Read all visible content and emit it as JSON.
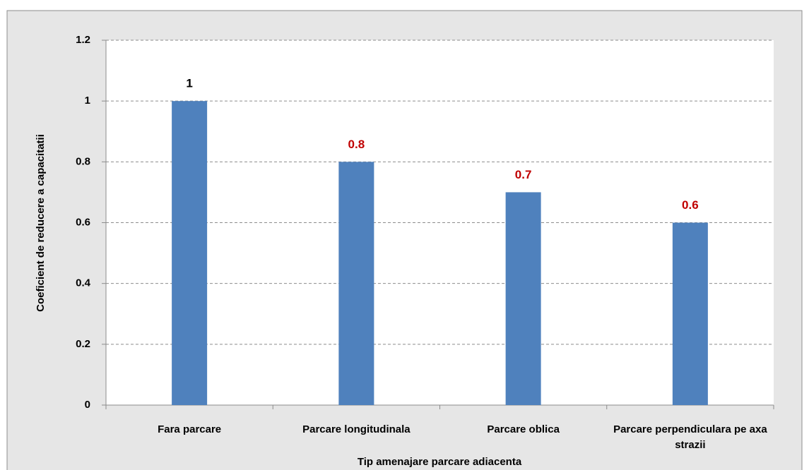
{
  "chart_data": {
    "type": "bar",
    "categories": [
      "Fara parcare",
      "Parcare longitudinala",
      "Parcare oblica",
      "Parcare perpendiculara pe axa strazii"
    ],
    "values": [
      1,
      0.8,
      0.7,
      0.6
    ],
    "color": "#4f81bd",
    "value_label_colors": [
      "#000000",
      "#c00000",
      "#c00000",
      "#c00000"
    ],
    "xlabel": "Tip amenajare parcare adiacenta",
    "ylabel": "Coeficient de reducere a capacitatii",
    "ylim": [
      0,
      1.2
    ],
    "yticks": [
      0,
      0.2,
      0.4,
      0.6,
      0.8,
      1,
      1.2
    ],
    "grid": true
  }
}
